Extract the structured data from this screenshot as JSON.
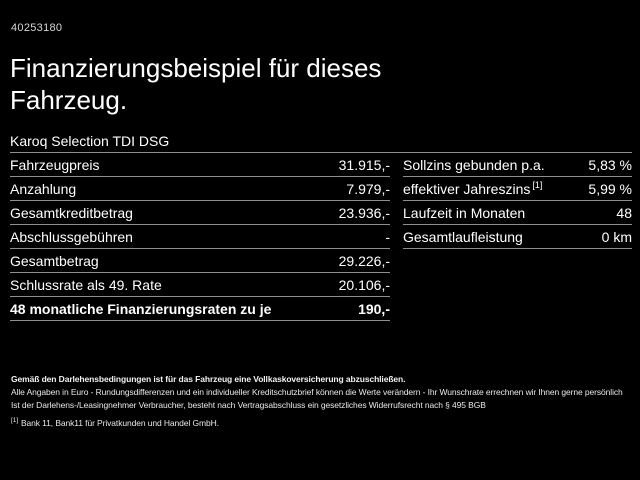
{
  "page": {
    "vehicle_id": "40253180",
    "title": "Finanzierungsbeispiel für dieses Fahrzeug.",
    "model": "Karoq Selection TDI DSG"
  },
  "left_table": {
    "rows": [
      {
        "label": "Fahrzeugpreis",
        "value": "31.915,-"
      },
      {
        "label": "Anzahlung",
        "value": "7.979,-"
      },
      {
        "label": "Gesamtkreditbetrag",
        "value": "23.936,-"
      },
      {
        "label": "Abschlussgebühren",
        "value": "-"
      },
      {
        "label": "Gesamtbetrag",
        "value": "29.226,-"
      },
      {
        "label": "Schlussrate als 49. Rate",
        "value": "20.106,-"
      },
      {
        "label": "48 monatliche Finanzierungsraten zu je",
        "value": "190,-"
      }
    ]
  },
  "right_table": {
    "rows": [
      {
        "label": "Sollzins gebunden p.a.",
        "sup": "",
        "value": "5,83 %"
      },
      {
        "label": "effektiver Jahreszins",
        "sup": "[1]",
        "value": "5,99 %"
      },
      {
        "label": "Laufzeit in Monaten",
        "sup": "",
        "value": "48"
      },
      {
        "label": "Gesamtlaufleistung",
        "sup": "",
        "value": "0 km"
      }
    ]
  },
  "footer": {
    "line1": "Gemäß den Darlehensbedingungen ist für das Fahrzeug eine Vollkaskoversicherung abzuschließen.",
    "line2": "Alle Angaben in Euro - Rundungsdifferenzen und ein individueller Kreditschutzbrief können die Werte verändern - Ihr Wunschrate errechnen wir Ihnen gerne persönlich",
    "line3": "Ist der Darlehens-/Leasingnehmer Verbraucher, besteht nach Vertragsabschluss ein gesetzliches Widerrufsrecht nach § 495 BGB",
    "footnote_marker": "[1]",
    "footnote_text": "Bank 11, Bank11 für Privatkunden und Handel GmbH."
  },
  "colors": {
    "background": "#000000",
    "text": "#ffffff",
    "separator": "#8f8f8f"
  }
}
